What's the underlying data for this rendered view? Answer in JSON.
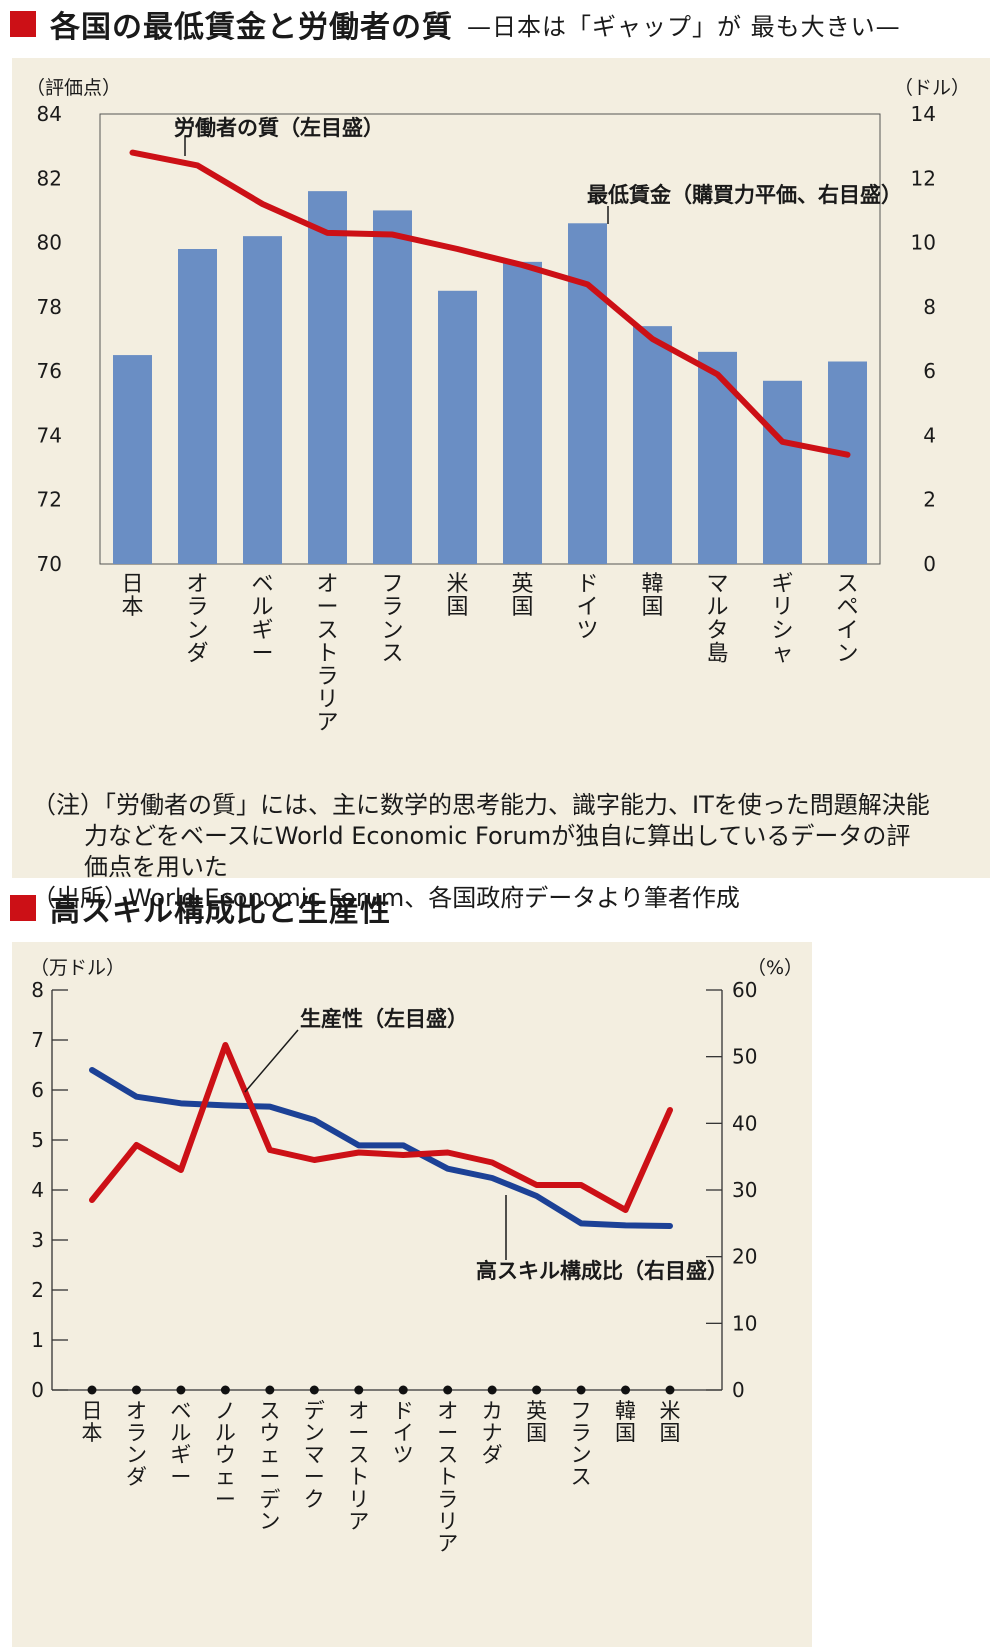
{
  "chart1": {
    "title": "各国の最低賃金と労働者の質",
    "subtitle": "—日本は「ギャップ」が 最も大きい—",
    "left_unit": "（評価点）",
    "right_unit": "（ドル）",
    "left_ticks": [
      "84",
      "82",
      "80",
      "78",
      "76",
      "74",
      "72",
      "70"
    ],
    "right_ticks": [
      "14",
      "12",
      "10",
      "8",
      "6",
      "4",
      "2",
      "0"
    ],
    "line_label": "労働者の質（左目盛）",
    "bar_label": "最低賃金（購買力平価、右目盛）",
    "notes": [
      "（注）「労働者の質」には、主に数学的思考能力、識字能力、ITを使った問題解決能",
      "力などをベースにWorld Economic Forumが独自に算出しているデータの評",
      "価点を用いた",
      "（出所）World Economic Forum、各国政府データより筆者作成"
    ]
  },
  "chart2": {
    "title": "高スキル構成比と生産性",
    "left_unit": "（万ドル）",
    "right_unit": "（%）",
    "left_ticks": [
      "8",
      "7",
      "6",
      "5",
      "4",
      "3",
      "2",
      "1",
      "0"
    ],
    "right_ticks": [
      "60",
      "50",
      "40",
      "30",
      "20",
      "10",
      "0"
    ],
    "productivity_label": "生産性（左目盛）",
    "skill_label": "高スキル構成比（右目盛）"
  },
  "chart_data": [
    {
      "type": "bar+line",
      "title": "各国の最低賃金と労働者の質",
      "categories": [
        "日本",
        "オランダ",
        "ベルギー",
        "オーストラリア",
        "フランス",
        "米国",
        "英国",
        "ドイツ",
        "韓国",
        "マルタ島",
        "ギリシャ",
        "スペイン"
      ],
      "series": [
        {
          "name": "労働者の質（左目盛）",
          "type": "line",
          "axis": "left",
          "color": "#cc1016",
          "values": [
            82.8,
            82.4,
            81.2,
            80.3,
            80.25,
            79.8,
            79.3,
            78.7,
            77.0,
            75.9,
            73.8,
            73.4
          ]
        },
        {
          "name": "最低賃金（購買力平価、右目盛）",
          "type": "bar",
          "axis": "right",
          "color": "#6a8ec4",
          "values": [
            6.5,
            9.8,
            10.2,
            11.6,
            11.0,
            8.5,
            9.4,
            10.6,
            7.4,
            6.6,
            5.7,
            6.3
          ]
        }
      ],
      "ylim_left": [
        70,
        84
      ],
      "ylim_right": [
        0,
        14
      ]
    },
    {
      "type": "line",
      "title": "高スキル構成比と生産性",
      "categories": [
        "日本",
        "オランダ",
        "ベルギー",
        "ノルウェー",
        "スウェーデン",
        "デンマーク",
        "オーストリア",
        "ドイツ",
        "オーストラリア",
        "カナダ",
        "英国",
        "フランス",
        "韓国",
        "米国"
      ],
      "series": [
        {
          "name": "生産性（左目盛）",
          "axis": "left",
          "color": "#cc1016",
          "values": [
            3.8,
            4.9,
            4.4,
            6.9,
            4.8,
            4.6,
            4.75,
            4.7,
            4.75,
            4.55,
            4.1,
            4.1,
            3.6,
            5.6
          ]
        },
        {
          "name": "高スキル構成比（右目盛）",
          "axis": "right",
          "color": "#1c4196",
          "values": [
            48,
            44,
            43,
            42.7,
            42.5,
            40.5,
            36.7,
            36.7,
            33.2,
            31.8,
            29.1,
            25,
            24.7,
            24.6
          ]
        }
      ],
      "ylim_left": [
        0,
        8
      ],
      "ylim_right": [
        0,
        60
      ]
    }
  ]
}
